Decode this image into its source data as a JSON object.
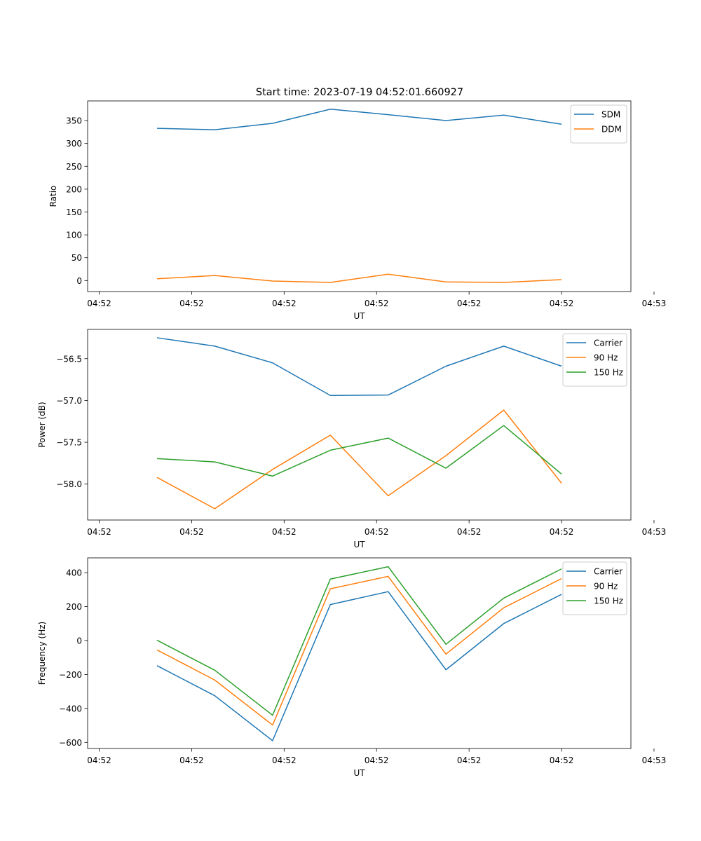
{
  "title": "Start time: 2023-07-19 04:52:01.660927",
  "chart_data": [
    {
      "type": "line",
      "xlabel": "UT",
      "ylabel": "Ratio",
      "xticklabels": [
        "04:52",
        "04:52",
        "04:52",
        "04:52",
        "04:52",
        "04:52",
        "04:53"
      ],
      "x": [
        0.5,
        1.0,
        1.5,
        2.0,
        2.5,
        3.0,
        3.5,
        4.0
      ],
      "xlim": [
        -0.1,
        4.6
      ],
      "ylim": [
        -24,
        393
      ],
      "yticks": [
        0,
        50,
        100,
        150,
        200,
        250,
        300,
        350
      ],
      "yticklabels": [
        "0",
        "50",
        "100",
        "150",
        "200",
        "250",
        "300",
        "350"
      ],
      "legend": "top-right",
      "series": [
        {
          "name": "SDM",
          "color": "#1f77b4",
          "values": [
            333,
            330,
            344,
            375,
            363,
            350,
            362,
            342
          ]
        },
        {
          "name": "DDM",
          "color": "#ff7f0e",
          "values": [
            4,
            11,
            -1,
            -4,
            14,
            -3,
            -4,
            2
          ]
        }
      ]
    },
    {
      "type": "line",
      "xlabel": "UT",
      "ylabel": "Power (dB)",
      "xticklabels": [
        "04:52",
        "04:52",
        "04:52",
        "04:52",
        "04:52",
        "04:52",
        "04:53"
      ],
      "x": [
        0.5,
        1.0,
        1.5,
        2.0,
        2.5,
        3.0,
        3.5,
        4.0
      ],
      "xlim": [
        -0.1,
        4.6
      ],
      "ylim": [
        -58.43,
        -56.15
      ],
      "yticks": [
        -58.0,
        -57.5,
        -57.0,
        -56.5
      ],
      "yticklabels": [
        "−58.0",
        "−57.5",
        "−57.0",
        "−56.5"
      ],
      "legend": "top-right",
      "series": [
        {
          "name": "Carrier",
          "color": "#1f77b4",
          "values": [
            -56.25,
            -56.35,
            -56.55,
            -56.94,
            -56.935,
            -56.59,
            -56.35,
            -56.59
          ]
        },
        {
          "name": "90 Hz",
          "color": "#ff7f0e",
          "values": [
            -57.92,
            -58.295,
            -57.825,
            -57.415,
            -58.14,
            -57.66,
            -57.115,
            -57.99
          ]
        },
        {
          "name": "150 Hz",
          "color": "#2ca02c",
          "values": [
            -57.695,
            -57.735,
            -57.905,
            -57.595,
            -57.45,
            -57.81,
            -57.3,
            -57.88
          ]
        }
      ]
    },
    {
      "type": "line",
      "xlabel": "UT",
      "ylabel": "Frequency (Hz)",
      "xticklabels": [
        "04:52",
        "04:52",
        "04:52",
        "04:52",
        "04:52",
        "04:52",
        "04:53"
      ],
      "x": [
        0.5,
        1.0,
        1.5,
        2.0,
        2.5,
        3.0,
        3.5,
        4.0
      ],
      "xlim": [
        -0.1,
        4.6
      ],
      "ylim": [
        -636,
        487
      ],
      "yticks": [
        -600,
        -400,
        -200,
        0,
        200,
        400
      ],
      "yticklabels": [
        "−600",
        "−400",
        "−200",
        "0",
        "200",
        "400"
      ],
      "legend": "top-right",
      "series": [
        {
          "name": "Carrier",
          "color": "#1f77b4",
          "values": [
            -148,
            -325,
            -590,
            212,
            288,
            -172,
            100,
            272
          ]
        },
        {
          "name": "90 Hz",
          "color": "#ff7f0e",
          "values": [
            -55,
            -233,
            -498,
            305,
            378,
            -80,
            193,
            365
          ]
        },
        {
          "name": "150 Hz",
          "color": "#2ca02c",
          "values": [
            2,
            -175,
            -440,
            362,
            435,
            -22,
            250,
            422
          ]
        }
      ]
    }
  ]
}
